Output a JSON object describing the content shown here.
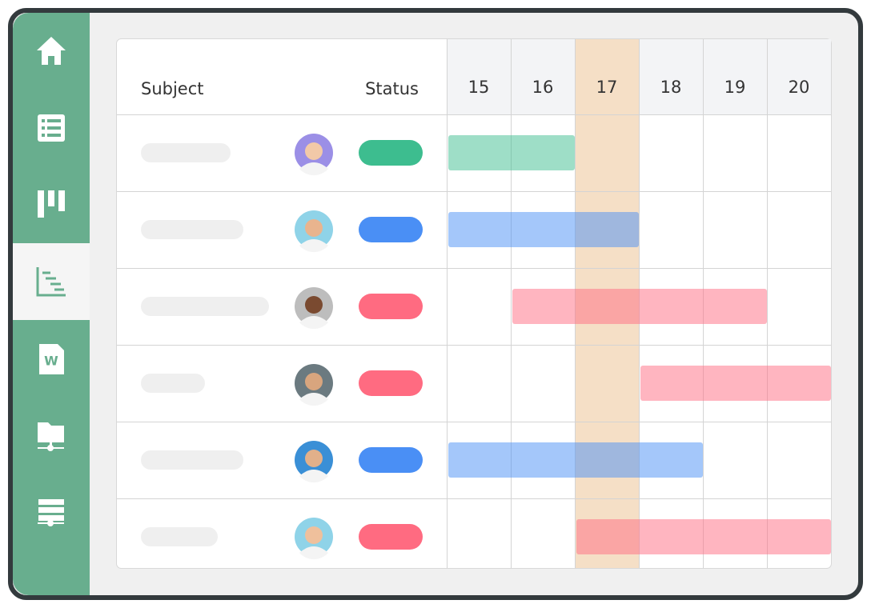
{
  "header": {
    "subject": "Subject",
    "status": "Status"
  },
  "days": [
    15,
    16,
    17,
    18,
    19,
    20
  ],
  "highlight_day": 17,
  "rows": [
    {
      "status_color": "#3dbd8f",
      "start": 15,
      "end": 16
    },
    {
      "status_color": "#4a8ff5",
      "start": 15,
      "end": 17
    },
    {
      "status_color": "#ff6b81",
      "start": 16,
      "end": 19
    },
    {
      "status_color": "#ff6b81",
      "start": 18,
      "end": 20
    },
    {
      "status_color": "#4a8ff5",
      "start": 15,
      "end": 18
    },
    {
      "status_color": "#ff6b81",
      "start": 17,
      "end": 20
    }
  ]
}
